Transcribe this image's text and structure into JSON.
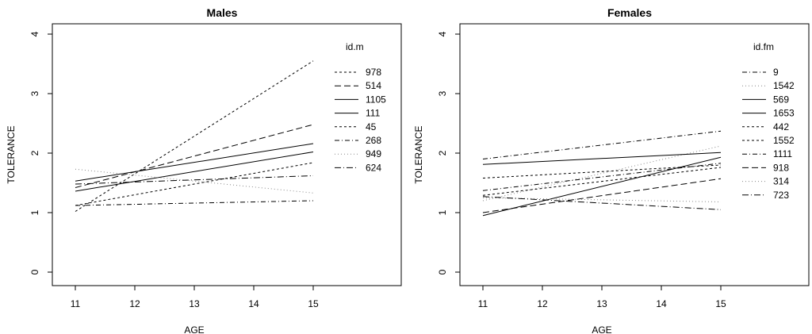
{
  "chart_data": [
    {
      "type": "line",
      "title": "Males",
      "xlabel": "AGE",
      "ylabel": "TOLERANCE",
      "xlim": [
        11,
        15
      ],
      "ylim": [
        0,
        4
      ],
      "x_ticks": [
        11,
        12,
        13,
        14,
        15
      ],
      "y_ticks": [
        0,
        1,
        2,
        3,
        4
      ],
      "legend_title": "id.m",
      "legend_position": "right",
      "x": [
        11,
        15
      ],
      "series": [
        {
          "name": "978",
          "dash": "3,3",
          "color": "#000000",
          "values": [
            1.02,
            3.55
          ]
        },
        {
          "name": "514",
          "dash": "8,4",
          "color": "#000000",
          "values": [
            1.42,
            2.48
          ]
        },
        {
          "name": "1105",
          "dash": "",
          "color": "#000000",
          "values": [
            1.53,
            2.16
          ]
        },
        {
          "name": "111",
          "dash": "",
          "color": "#000000",
          "values": [
            1.36,
            2.02
          ]
        },
        {
          "name": "45",
          "dash": "3,3",
          "color": "#000000",
          "values": [
            1.12,
            1.84
          ]
        },
        {
          "name": "268",
          "dash": "6,3,1,3",
          "color": "#000000",
          "values": [
            1.12,
            1.2
          ]
        },
        {
          "name": "949",
          "dash": "1,3",
          "color": "#888888",
          "values": [
            1.73,
            1.33
          ]
        },
        {
          "name": "624",
          "dash": "8,3,1,3",
          "color": "#000000",
          "values": [
            1.48,
            1.62
          ]
        }
      ]
    },
    {
      "type": "line",
      "title": "Females",
      "xlabel": "AGE",
      "ylabel": "TOLERANCE",
      "xlim": [
        11,
        15
      ],
      "ylim": [
        0,
        4
      ],
      "x_ticks": [
        11,
        12,
        13,
        14,
        15
      ],
      "y_ticks": [
        0,
        1,
        2,
        3,
        4
      ],
      "legend_title": "id.fm",
      "legend_position": "right",
      "x": [
        11,
        15
      ],
      "series": [
        {
          "name": "9",
          "dash": "6,3,1,3",
          "color": "#000000",
          "values": [
            1.9,
            2.37
          ]
        },
        {
          "name": "1542",
          "dash": "1,3",
          "color": "#888888",
          "values": [
            1.2,
            2.12
          ]
        },
        {
          "name": "569",
          "dash": "",
          "color": "#000000",
          "values": [
            1.81,
            2.01
          ]
        },
        {
          "name": "1653",
          "dash": "",
          "color": "#000000",
          "values": [
            0.95,
            1.93
          ]
        },
        {
          "name": "442",
          "dash": "3,3",
          "color": "#000000",
          "values": [
            1.58,
            1.8
          ]
        },
        {
          "name": "1552",
          "dash": "3,3",
          "color": "#000000",
          "values": [
            1.29,
            1.76
          ]
        },
        {
          "name": "1111",
          "dash": "6,3,1,3",
          "color": "#000000",
          "values": [
            1.37,
            1.83
          ]
        },
        {
          "name": "918",
          "dash": "8,4",
          "color": "#000000",
          "values": [
            1.0,
            1.57
          ]
        },
        {
          "name": "314",
          "dash": "1,3",
          "color": "#888888",
          "values": [
            1.25,
            1.18
          ]
        },
        {
          "name": "723",
          "dash": "8,3,1,3",
          "color": "#000000",
          "values": [
            1.27,
            1.05
          ]
        }
      ]
    }
  ]
}
